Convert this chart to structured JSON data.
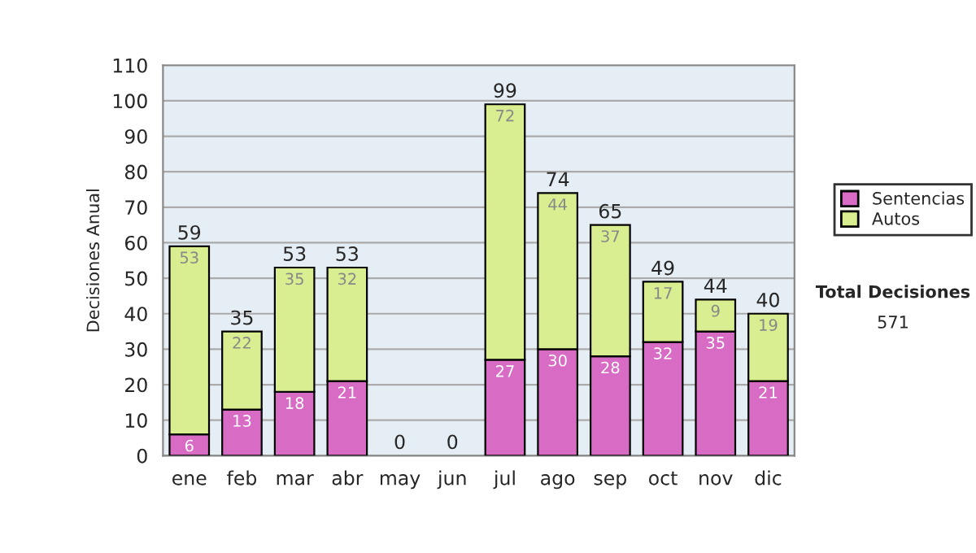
{
  "chart_data": {
    "type": "bar",
    "stacked": true,
    "ylabel": "Decisiones Anual",
    "categories": [
      "ene",
      "feb",
      "mar",
      "abr",
      "may",
      "jun",
      "jul",
      "ago",
      "sep",
      "oct",
      "nov",
      "dic"
    ],
    "series": [
      {
        "name": "Sentencias",
        "color": "#d86cc4",
        "values": [
          6,
          13,
          18,
          21,
          0,
          0,
          27,
          30,
          28,
          32,
          35,
          21
        ],
        "value_labels": [
          "6",
          "13",
          "18",
          "21",
          null,
          null,
          "27",
          "30",
          "28",
          "32",
          "35",
          "21"
        ]
      },
      {
        "name": "Autos",
        "color": "#d8ee90",
        "values": [
          53,
          22,
          35,
          32,
          0,
          0,
          72,
          44,
          37,
          17,
          9,
          19
        ],
        "value_labels": [
          "53",
          "22",
          "35",
          "32",
          null,
          null,
          "72",
          "44",
          "37",
          "17",
          "9",
          "19"
        ]
      }
    ],
    "totals": [
      "59",
      "35",
      "53",
      "53",
      "0",
      "0",
      "99",
      "74",
      "65",
      "49",
      "44",
      "40"
    ],
    "ylim": [
      0,
      110
    ],
    "yticks": [
      0,
      10,
      20,
      30,
      40,
      50,
      60,
      70,
      80,
      90,
      100,
      110
    ],
    "grid": "y",
    "legend": "right",
    "annotations": [
      "Total Decisiones",
      "571"
    ]
  }
}
